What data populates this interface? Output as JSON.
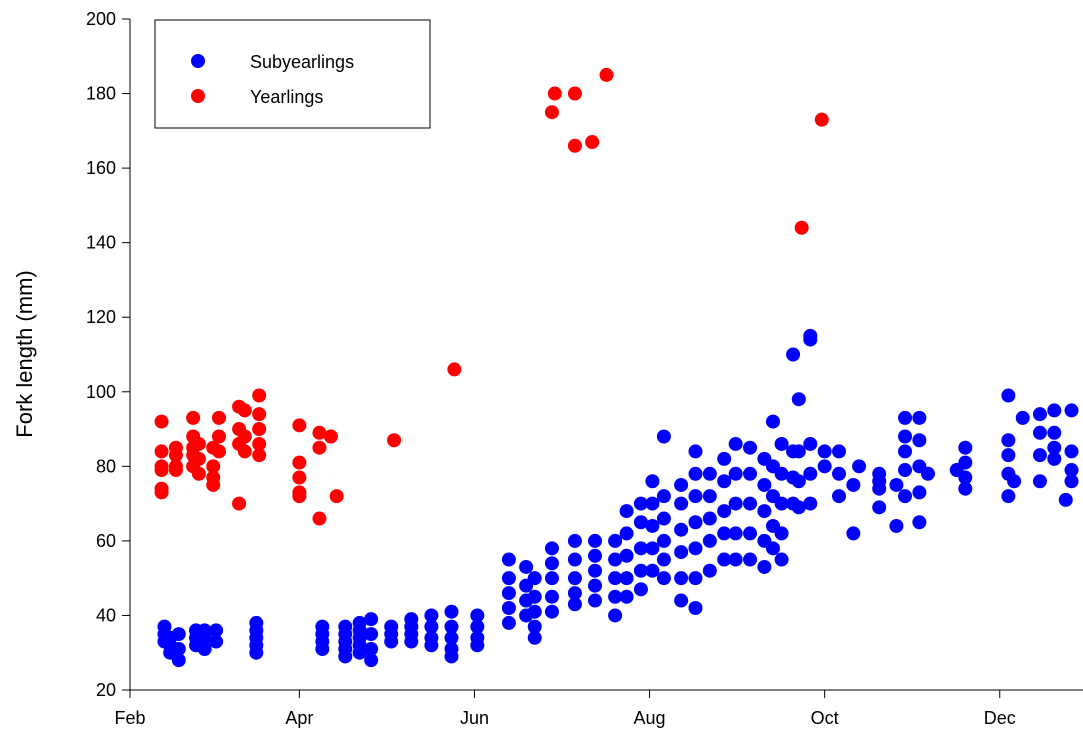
{
  "chart_data": {
    "type": "scatter",
    "ylabel": "Fork length (mm)",
    "xlim": [
      32,
      364
    ],
    "xticks": [
      {
        "value": 32,
        "label": "Feb"
      },
      {
        "value": 91,
        "label": "Apr"
      },
      {
        "value": 152,
        "label": "Jun"
      },
      {
        "value": 213,
        "label": "Aug"
      },
      {
        "value": 274,
        "label": "Oct"
      },
      {
        "value": 335,
        "label": "Dec"
      }
    ],
    "ylim": [
      20,
      200
    ],
    "yticks": [
      20,
      40,
      60,
      80,
      100,
      120,
      140,
      160,
      180,
      200
    ],
    "grid": false,
    "legend": "upper left",
    "series": [
      {
        "name": "Subyearlings",
        "color": "#0000ff",
        "x": [
          44,
          44,
          44,
          46,
          46,
          46,
          49,
          49,
          49,
          55,
          55,
          55,
          58,
          58,
          58,
          62,
          62,
          76,
          76,
          76,
          76,
          76,
          99,
          99,
          99,
          99,
          107,
          107,
          107,
          107,
          107,
          112,
          112,
          112,
          112,
          112,
          116,
          116,
          116,
          116,
          123,
          123,
          123,
          130,
          130,
          130,
          130,
          137,
          137,
          137,
          137,
          144,
          144,
          144,
          144,
          144,
          153,
          153,
          153,
          153,
          164,
          164,
          164,
          164,
          164,
          170,
          170,
          170,
          170,
          173,
          173,
          173,
          173,
          173,
          179,
          179,
          179,
          179,
          179,
          187,
          187,
          187,
          187,
          187,
          194,
          194,
          194,
          194,
          194,
          201,
          201,
          201,
          201,
          201,
          205,
          205,
          205,
          205,
          205,
          210,
          210,
          210,
          210,
          210,
          214,
          214,
          214,
          214,
          214,
          218,
          218,
          218,
          218,
          218,
          218,
          224,
          224,
          224,
          224,
          224,
          224,
          229,
          229,
          229,
          229,
          229,
          229,
          229,
          234,
          234,
          234,
          234,
          234,
          239,
          239,
          239,
          239,
          239,
          243,
          243,
          243,
          243,
          243,
          248,
          248,
          248,
          248,
          248,
          253,
          253,
          253,
          253,
          253,
          256,
          256,
          256,
          256,
          256,
          259,
          259,
          259,
          259,
          259,
          263,
          263,
          263,
          263,
          265,
          265,
          265,
          265,
          269,
          269,
          269,
          269,
          269,
          274,
          274,
          279,
          279,
          279,
          284,
          284,
          286,
          293,
          293,
          293,
          293,
          299,
          299,
          302,
          302,
          302,
          302,
          302,
          307,
          307,
          307,
          307,
          307,
          310,
          320,
          323,
          323,
          323,
          323,
          338,
          338,
          338,
          338,
          338,
          340,
          343,
          349,
          349,
          349,
          349,
          354,
          354,
          354,
          354,
          358,
          360,
          360,
          360,
          360
        ],
        "values": [
          37,
          35,
          33,
          34,
          32,
          30,
          35,
          31,
          28,
          36,
          34,
          32,
          36,
          34,
          31,
          36,
          33,
          38,
          36,
          34,
          32,
          30,
          37,
          35,
          33,
          31,
          37,
          35,
          33,
          31,
          29,
          38,
          36,
          34,
          32,
          30,
          39,
          35,
          31,
          28,
          37,
          35,
          33,
          39,
          37,
          35,
          33,
          40,
          37,
          34,
          32,
          41,
          37,
          34,
          31,
          29,
          40,
          37,
          34,
          32,
          55,
          50,
          46,
          42,
          38,
          53,
          48,
          44,
          40,
          50,
          45,
          41,
          37,
          34,
          58,
          54,
          50,
          45,
          41,
          60,
          55,
          50,
          46,
          43,
          60,
          56,
          52,
          48,
          44,
          60,
          55,
          50,
          45,
          40,
          68,
          62,
          56,
          50,
          45,
          70,
          65,
          58,
          52,
          47,
          76,
          70,
          64,
          58,
          52,
          88,
          72,
          66,
          60,
          55,
          50,
          75,
          70,
          63,
          57,
          50,
          44,
          84,
          78,
          72,
          65,
          58,
          50,
          42,
          78,
          72,
          66,
          60,
          52,
          82,
          76,
          68,
          62,
          55,
          86,
          78,
          70,
          62,
          55,
          85,
          78,
          70,
          62,
          55,
          82,
          75,
          68,
          60,
          53,
          92,
          80,
          72,
          64,
          58,
          86,
          78,
          70,
          62,
          55,
          110,
          84,
          77,
          70,
          98,
          84,
          76,
          69,
          115,
          114,
          86,
          78,
          70,
          84,
          80,
          84,
          78,
          72,
          75,
          62,
          80,
          78,
          74,
          69,
          76,
          75,
          64,
          93,
          88,
          84,
          79,
          72,
          93,
          87,
          80,
          73,
          65,
          78,
          79,
          85,
          81,
          77,
          74,
          99,
          87,
          83,
          78,
          72,
          76,
          93,
          94,
          89,
          83,
          76,
          95,
          89,
          85,
          82,
          71,
          95,
          84,
          79,
          76
        ]
      },
      {
        "name": "Yearlings",
        "color": "#ff0000",
        "x": [
          43,
          43,
          43,
          43,
          43,
          43,
          48,
          48,
          48,
          48,
          54,
          54,
          54,
          54,
          54,
          56,
          56,
          56,
          61,
          61,
          61,
          61,
          63,
          63,
          63,
          70,
          70,
          70,
          70,
          72,
          72,
          72,
          77,
          77,
          77,
          77,
          77,
          91,
          91,
          91,
          91,
          91,
          98,
          98,
          98,
          102,
          104,
          124,
          145,
          179,
          180,
          187,
          187,
          193,
          198,
          266,
          273
        ],
        "values": [
          92,
          84,
          80,
          79,
          74,
          73,
          85,
          83,
          80,
          79,
          93,
          88,
          85,
          83,
          80,
          86,
          82,
          78,
          85,
          80,
          75,
          77,
          93,
          88,
          84,
          96,
          90,
          86,
          70,
          95,
          88,
          84,
          99,
          94,
          90,
          86,
          83,
          91,
          81,
          77,
          73,
          72,
          89,
          85,
          66,
          88,
          72,
          87,
          106,
          175,
          180,
          180,
          166,
          167,
          185,
          144,
          173
        ]
      }
    ]
  }
}
